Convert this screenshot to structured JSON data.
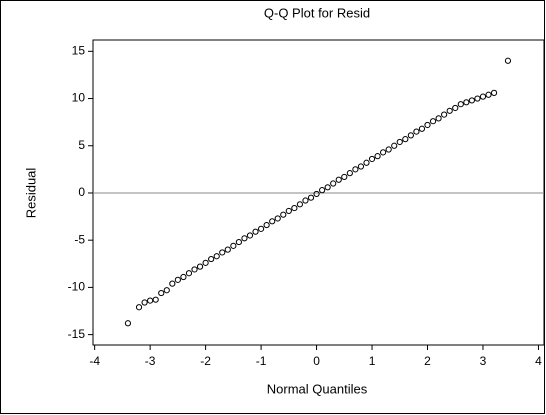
{
  "chart_data": {
    "type": "scatter",
    "title": "Q-Q Plot for Resid",
    "x_label": "Normal Quantiles",
    "y_label": "Residual",
    "xlim": [
      -4.03,
      4.1
    ],
    "ylim": [
      -16.1,
      16.2
    ],
    "xticks": [
      -4,
      -3,
      -2,
      -1,
      0,
      1,
      2,
      3,
      4
    ],
    "yticks": [
      -15,
      -10,
      -5,
      0,
      5,
      10,
      15
    ],
    "reference_line": 0,
    "color": "#000000",
    "x": [
      -3.4,
      -3.2,
      -3.1,
      -3.0,
      -2.9,
      -2.8,
      -2.7,
      -2.6,
      -2.5,
      -2.4,
      -2.3,
      -2.2,
      -2.1,
      -2.0,
      -1.9,
      -1.8,
      -1.7,
      -1.6,
      -1.5,
      -1.4,
      -1.3,
      -1.2,
      -1.1,
      -1.0,
      -0.9,
      -0.8,
      -0.7,
      -0.6,
      -0.5,
      -0.4,
      -0.3,
      -0.2,
      -0.1,
      0,
      0.1,
      0.2,
      0.3,
      0.4,
      0.5,
      0.6,
      0.7,
      0.8,
      0.9,
      1.0,
      1.1,
      1.2,
      1.3,
      1.4,
      1.5,
      1.6,
      1.7,
      1.8,
      1.9,
      2.0,
      2.1,
      2.2,
      2.3,
      2.4,
      2.5,
      2.6,
      2.7,
      2.8,
      2.9,
      3.0,
      3.1,
      3.2,
      3.45
    ],
    "values": [
      -13.8,
      -12.1,
      -11.6,
      -11.4,
      -11.3,
      -10.6,
      -10.3,
      -9.6,
      -9.2,
      -8.9,
      -8.5,
      -8.1,
      -7.8,
      -7.4,
      -7.0,
      -6.7,
      -6.3,
      -6.0,
      -5.6,
      -5.2,
      -4.8,
      -4.5,
      -4.1,
      -3.8,
      -3.4,
      -3.0,
      -2.7,
      -2.3,
      -1.9,
      -1.6,
      -1.2,
      -0.8,
      -0.5,
      -0.1,
      0.3,
      0.6,
      1.0,
      1.4,
      1.7,
      2.1,
      2.5,
      2.8,
      3.2,
      3.6,
      3.9,
      4.3,
      4.6,
      5.0,
      5.4,
      5.7,
      6.1,
      6.5,
      6.8,
      7.2,
      7.6,
      7.9,
      8.3,
      8.7,
      9.0,
      9.4,
      9.6,
      9.8,
      10.0,
      10.2,
      10.4,
      10.6,
      14.0
    ]
  }
}
